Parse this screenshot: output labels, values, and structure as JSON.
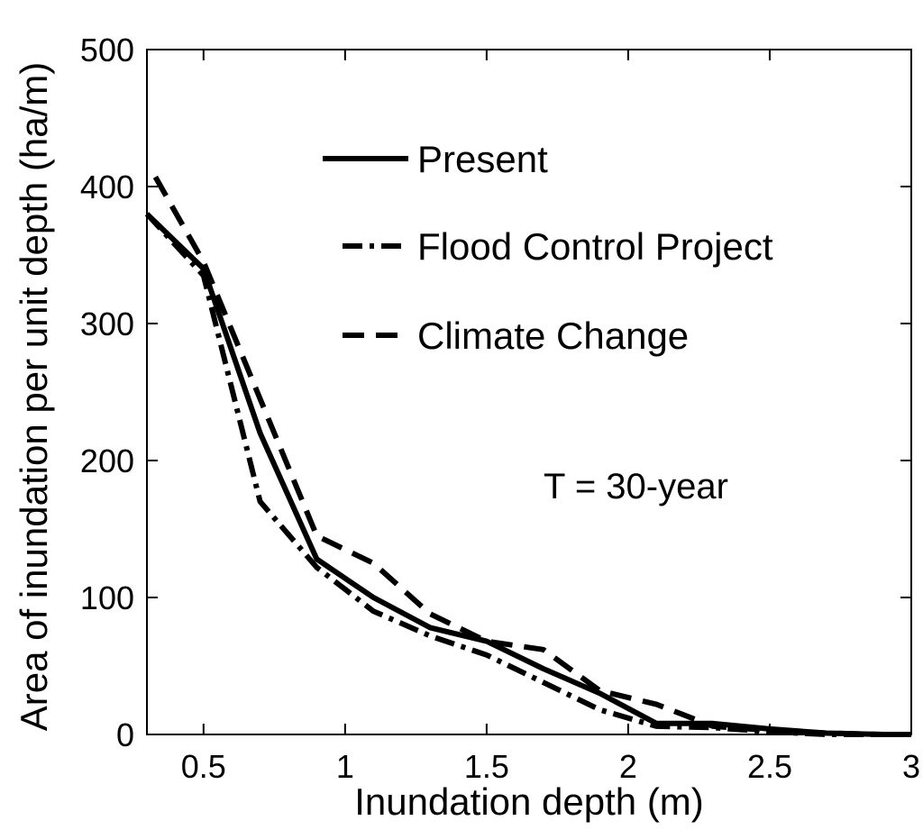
{
  "chart_data": {
    "type": "line",
    "title": "",
    "xlabel": "Inundation depth (m)",
    "ylabel": "Area of inundation per unit depth (ha/m)",
    "xlim": [
      0.3,
      3.0
    ],
    "ylim": [
      0,
      500
    ],
    "xticks": [
      0.5,
      1,
      1.5,
      2,
      2.5,
      3
    ],
    "xtick_labels": [
      "0.5",
      "1",
      "1.5",
      "2",
      "2.5",
      "3"
    ],
    "yticks": [
      0,
      100,
      200,
      300,
      400,
      500
    ],
    "ytick_labels": [
      "0",
      "100",
      "200",
      "300",
      "400",
      "500"
    ],
    "grid": false,
    "legend_position": "top-center",
    "annotation": "T = 30-year",
    "series": [
      {
        "name": "Present",
        "style": "solid",
        "x": [
          0.3,
          0.5,
          0.7,
          0.9,
          1.1,
          1.3,
          1.5,
          1.7,
          1.9,
          2.1,
          2.3,
          2.5,
          2.7,
          2.9,
          3.0
        ],
        "y": [
          380,
          340,
          220,
          128,
          100,
          78,
          68,
          48,
          30,
          8,
          8,
          4,
          1,
          0,
          0
        ]
      },
      {
        "name": "Flood Control Project",
        "style": "dashdot",
        "x": [
          0.3,
          0.5,
          0.7,
          0.9,
          1.1,
          1.3,
          1.5,
          1.7,
          1.9,
          2.1,
          2.3,
          2.5,
          2.7,
          2.9,
          3.0
        ],
        "y": [
          380,
          335,
          170,
          122,
          90,
          72,
          58,
          38,
          18,
          6,
          5,
          2,
          0,
          0,
          0
        ]
      },
      {
        "name": "Climate Change",
        "style": "dashed",
        "x": [
          0.33,
          0.5,
          0.7,
          0.9,
          1.1,
          1.3,
          1.5,
          1.7,
          1.9,
          2.1,
          2.3,
          2.5,
          2.7,
          2.9,
          3.0
        ],
        "y": [
          407,
          345,
          245,
          145,
          125,
          88,
          68,
          62,
          32,
          22,
          6,
          3,
          1,
          0,
          0
        ]
      }
    ]
  }
}
